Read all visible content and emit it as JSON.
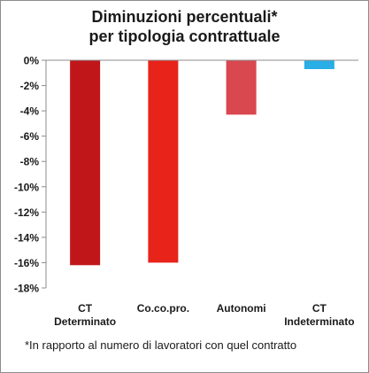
{
  "chart_data": {
    "type": "bar",
    "title": [
      "Diminuzioni percentuali*",
      "per tipologia contrattuale"
    ],
    "xlabel": "",
    "ylabel": "",
    "categories": [
      [
        "CT",
        "Determinato"
      ],
      [
        "Co.co.pro."
      ],
      [
        "Autonomi"
      ],
      [
        "CT",
        "Indeterminato"
      ]
    ],
    "values": [
      -16.2,
      -16.0,
      -4.3,
      -0.7
    ],
    "bar_colors": [
      "#c0161a",
      "#e8231a",
      "#d9474f",
      "#29aee6"
    ],
    "ylim": [
      -18,
      0
    ],
    "yticks": [
      0,
      -2,
      -4,
      -6,
      -8,
      -10,
      -12,
      -14,
      -16,
      -18
    ],
    "ytick_labels": [
      "0%",
      "-2%",
      "-4%",
      "-6%",
      "-8%",
      "-10%",
      "-12%",
      "-14%",
      "-16%",
      "-18%"
    ],
    "grid": false,
    "legend": "none",
    "footnote": "*In rapporto al numero di lavoratori con quel contratto"
  }
}
